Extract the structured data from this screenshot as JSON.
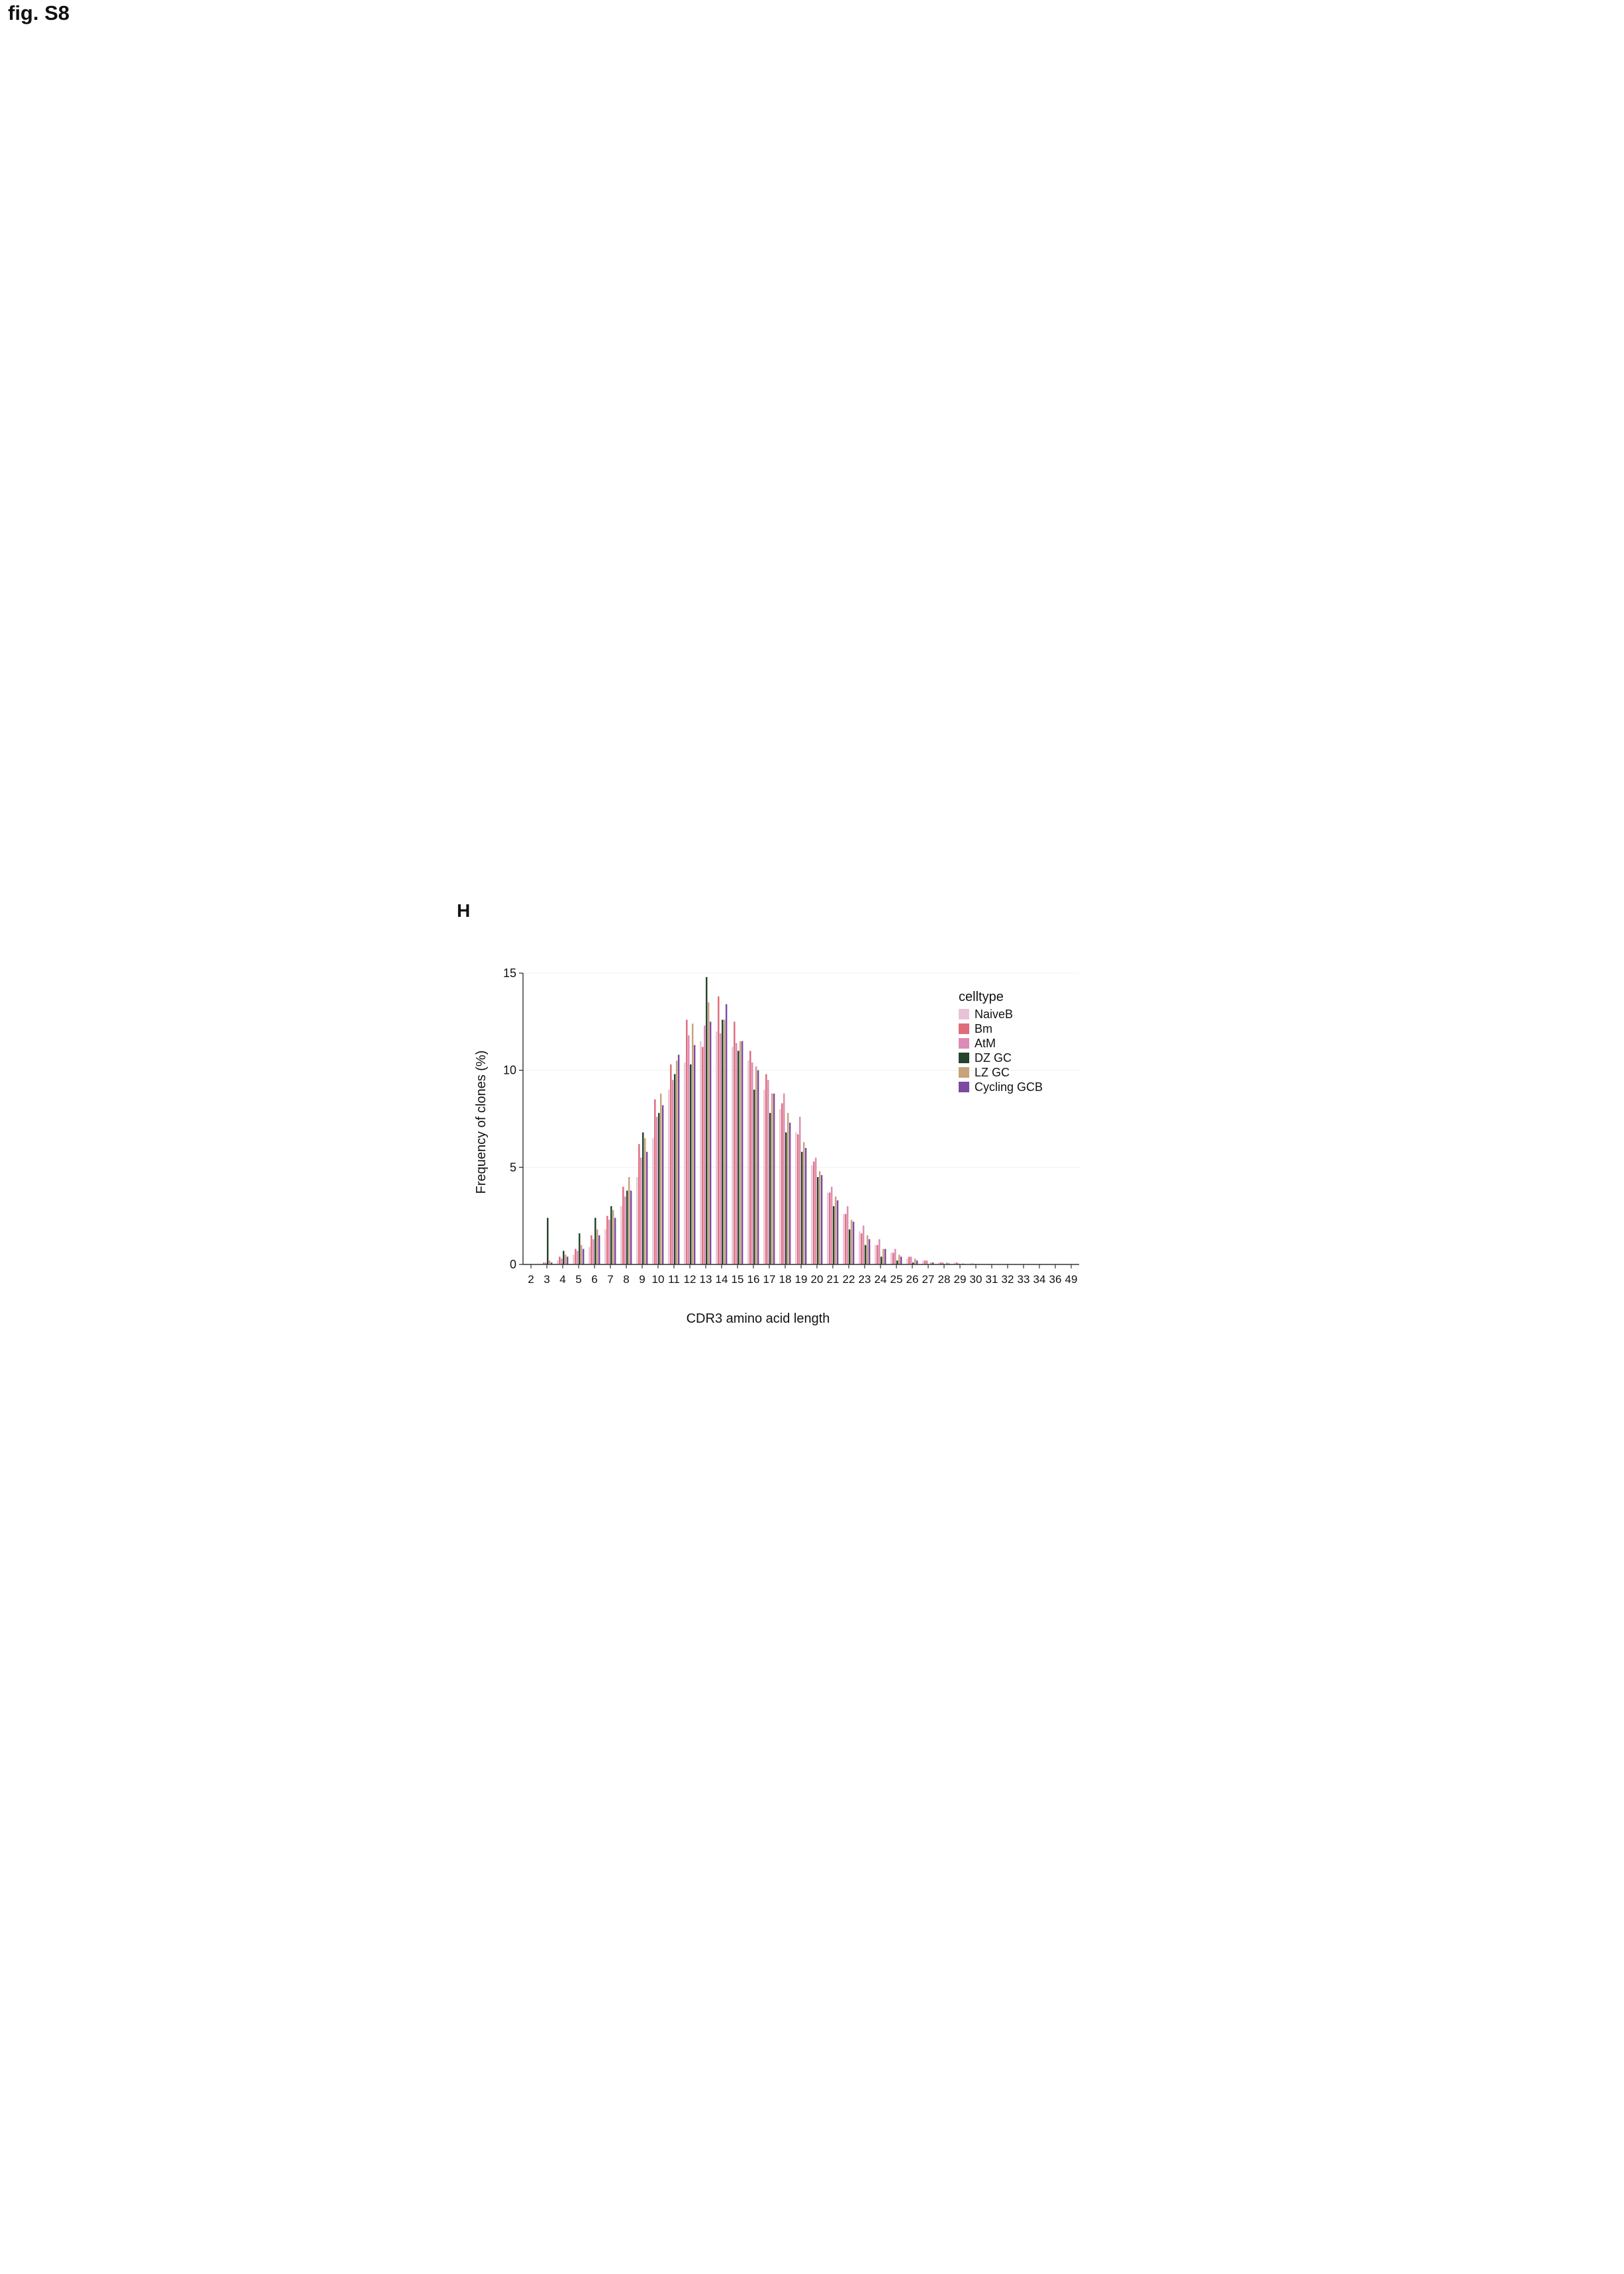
{
  "figure": {
    "title": "fig. S8",
    "panel_label": "H"
  },
  "colors": {
    "NaiveB": "#e8c3d6",
    "Bm": "#e06b7a",
    "AtM": "#dc8bb6",
    "DZ GC": "#24442d",
    "LZ GC": "#c8a37a",
    "Cycling GCB": "#7c4aa0",
    "axis": "#333333",
    "grid": "#f0f0f0"
  },
  "chart_data": {
    "type": "bar",
    "title": "",
    "xlabel": "CDR3 amino acid length",
    "ylabel": "Frequency of clones (%)",
    "ylim": [
      0,
      15
    ],
    "yticks": [
      0,
      5,
      10,
      15
    ],
    "legend_title": "celltype",
    "categories": [
      "2",
      "3",
      "4",
      "5",
      "6",
      "7",
      "8",
      "9",
      "10",
      "11",
      "12",
      "13",
      "14",
      "15",
      "16",
      "17",
      "18",
      "19",
      "20",
      "21",
      "22",
      "23",
      "24",
      "25",
      "26",
      "27",
      "28",
      "29",
      "30",
      "31",
      "32",
      "33",
      "34",
      "36",
      "49"
    ],
    "series": [
      {
        "name": "NaiveB",
        "values": [
          0.0,
          0.0,
          0.2,
          0.5,
          0.9,
          1.8,
          3.0,
          4.5,
          6.5,
          9.0,
          10.4,
          11.5,
          12.0,
          11.2,
          10.5,
          9.0,
          8.0,
          6.8,
          5.1,
          3.7,
          2.6,
          1.7,
          1.0,
          0.6,
          0.3,
          0.2,
          0.1,
          0.1,
          0.05,
          0.03,
          0.02,
          0.02,
          0.01,
          0.01,
          0.0
        ]
      },
      {
        "name": "Bm",
        "values": [
          0.0,
          0.1,
          0.4,
          0.8,
          1.5,
          2.5,
          4.0,
          6.2,
          8.5,
          10.3,
          12.6,
          11.2,
          13.8,
          12.5,
          11.0,
          9.8,
          8.3,
          6.7,
          5.3,
          3.7,
          2.6,
          1.6,
          1.0,
          0.6,
          0.4,
          0.2,
          0.1,
          0.1,
          0.05,
          0.03,
          0.02,
          0.01,
          0.01,
          0.01,
          0.0
        ]
      },
      {
        "name": "AtM",
        "values": [
          0.0,
          0.1,
          0.3,
          0.7,
          1.3,
          2.3,
          3.5,
          5.5,
          7.6,
          9.5,
          11.8,
          12.3,
          11.9,
          11.4,
          10.4,
          9.5,
          8.8,
          7.6,
          5.5,
          4.0,
          3.0,
          2.0,
          1.3,
          0.8,
          0.4,
          0.2,
          0.1,
          0.05,
          0.03,
          0.02,
          0.02,
          0.01,
          0.01,
          0.01,
          0.0
        ]
      },
      {
        "name": "DZ GC",
        "values": [
          0.0,
          2.4,
          0.7,
          1.6,
          2.4,
          3.0,
          3.8,
          6.8,
          7.8,
          9.8,
          10.3,
          14.8,
          12.6,
          11.0,
          9.0,
          7.8,
          6.8,
          5.8,
          4.5,
          3.0,
          1.8,
          1.0,
          0.4,
          0.2,
          0.1,
          0.0,
          0.0,
          0.0,
          0.0,
          0.0,
          0.0,
          0.0,
          0.0,
          0.0,
          0.0
        ]
      },
      {
        "name": "LZ GC",
        "values": [
          0.0,
          0.2,
          0.5,
          1.0,
          1.8,
          2.8,
          4.5,
          6.5,
          8.8,
          10.5,
          12.4,
          13.5,
          12.6,
          11.5,
          10.2,
          8.8,
          7.8,
          6.3,
          4.8,
          3.5,
          2.3,
          1.5,
          0.8,
          0.5,
          0.3,
          0.1,
          0.1,
          0.05,
          0.03,
          0.02,
          0.01,
          0.01,
          0.0,
          0.0,
          0.0
        ]
      },
      {
        "name": "Cycling GCB",
        "values": [
          0.0,
          0.1,
          0.4,
          0.8,
          1.5,
          2.4,
          3.8,
          5.8,
          8.2,
          10.8,
          11.3,
          12.5,
          13.4,
          11.5,
          10.0,
          8.8,
          7.3,
          6.0,
          4.6,
          3.3,
          2.2,
          1.3,
          0.8,
          0.4,
          0.2,
          0.1,
          0.05,
          0.03,
          0.02,
          0.01,
          0.01,
          0.0,
          0.0,
          0.0,
          0.0
        ]
      }
    ]
  }
}
